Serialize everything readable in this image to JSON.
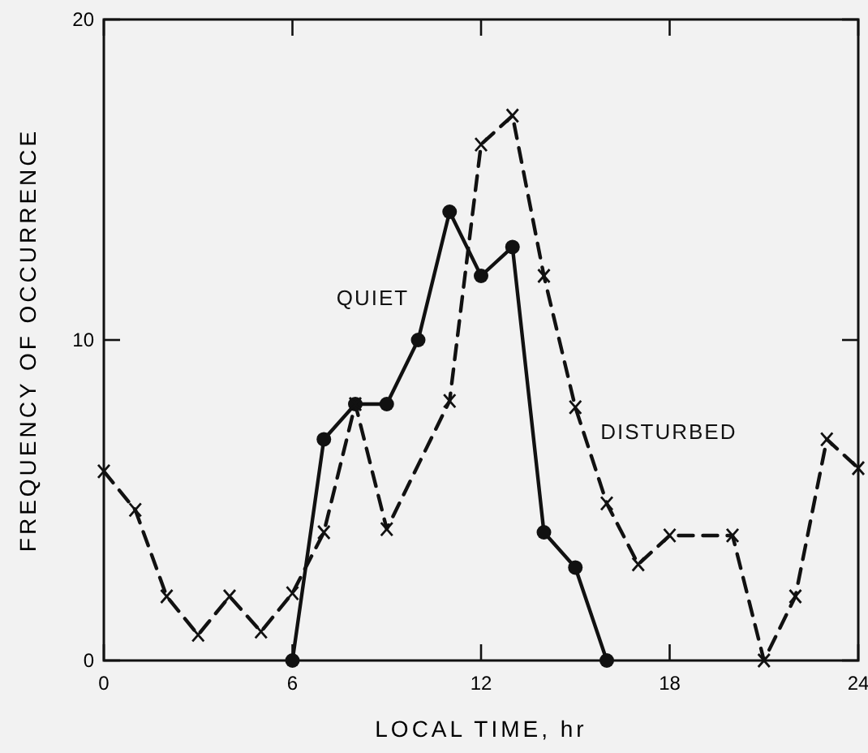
{
  "chart_data": {
    "type": "line",
    "xlabel": "LOCAL TIME, hr",
    "ylabel": "FREQUENCY OF OCCURRENCE",
    "xlim": [
      0,
      24
    ],
    "xticks": [
      0,
      6,
      12,
      18,
      24
    ],
    "ylim": [
      0,
      20
    ],
    "yticks": [
      0,
      10,
      20
    ],
    "series": [
      {
        "name": "QUIET",
        "color": "#111111",
        "marker": "circle",
        "line_style": "solid",
        "x": [
          6,
          7,
          8,
          9,
          10,
          11,
          12,
          13,
          14,
          15,
          16
        ],
        "values": [
          0,
          6.9,
          8,
          8,
          10,
          14,
          12,
          12.9,
          4,
          2.9,
          0
        ]
      },
      {
        "name": "DISTURBED",
        "color": "#111111",
        "marker": "cross",
        "line_style": "dashed",
        "x": [
          0,
          1,
          2,
          3,
          4,
          5,
          6,
          7,
          8,
          9,
          11,
          12,
          13,
          14,
          15,
          16,
          17,
          18,
          20,
          21,
          22,
          23,
          24
        ],
        "values": [
          5.9,
          4.7,
          2,
          0.8,
          2,
          0.9,
          2.1,
          4,
          8,
          4.1,
          8.1,
          16.1,
          17,
          12,
          7.9,
          4.9,
          3,
          3.9,
          3.9,
          0,
          2,
          6.9,
          6
        ]
      }
    ]
  }
}
